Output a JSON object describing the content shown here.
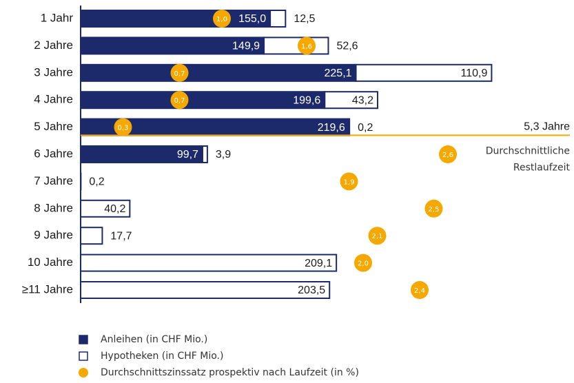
{
  "chart_data": {
    "type": "bar",
    "categories": [
      "1 Jahr",
      "2 Jahre",
      "3 Jahre",
      "4 Jahre",
      "5 Jahre",
      "6 Jahre",
      "7 Jahre",
      "8 Jahre",
      "9 Jahre",
      "10 Jahre",
      "≥11 Jahre"
    ],
    "xlim": [
      0,
      400
    ],
    "x2lim": [
      0,
      3.4
    ],
    "stacked": true,
    "series": [
      {
        "name": "Anleihen (in CHF Mio.)",
        "color": "#1c2a6c",
        "values": [
          155.0,
          149.9,
          225.1,
          199.6,
          219.6,
          99.7,
          null,
          null,
          null,
          null,
          null
        ],
        "value_labels": [
          "155,0",
          "149,9",
          "225,1",
          "199,6",
          "219,6",
          "99,7",
          null,
          null,
          null,
          null,
          null
        ]
      },
      {
        "name": "Hypotheken (in CHF Mio.)",
        "color": "#ffffff",
        "values": [
          12.5,
          52.6,
          110.9,
          43.2,
          0.2,
          3.9,
          0.2,
          40.2,
          17.7,
          209.1,
          203.5
        ],
        "value_labels": [
          "12,5",
          "52,6",
          "110,9",
          "43,2",
          "0,2",
          "3,9",
          "0,2",
          "40,2",
          "17,7",
          "209,1",
          "203,5"
        ]
      },
      {
        "name": "Durchschnittszinssatz prospektiv nach Laufzeit (in %)",
        "color": "#f5a800",
        "axis": "x2",
        "type": "scatter",
        "values": [
          1.0,
          1.6,
          0.7,
          0.7,
          0.3,
          2.6,
          1.9,
          2.5,
          2.1,
          2.0,
          2.4
        ],
        "value_labels": [
          "1,0",
          "1,6",
          "0,7",
          "0,7",
          "0,3",
          "2,6",
          "1,9",
          "2,5",
          "2,1",
          "2,0",
          "2,4"
        ]
      }
    ],
    "average_maturity": {
      "value": 5.3,
      "label": "5,3 Jahre",
      "color": "#f5a800"
    },
    "annotation_lines": [
      "Durchschnittliche",
      "Restlaufzeit"
    ]
  }
}
